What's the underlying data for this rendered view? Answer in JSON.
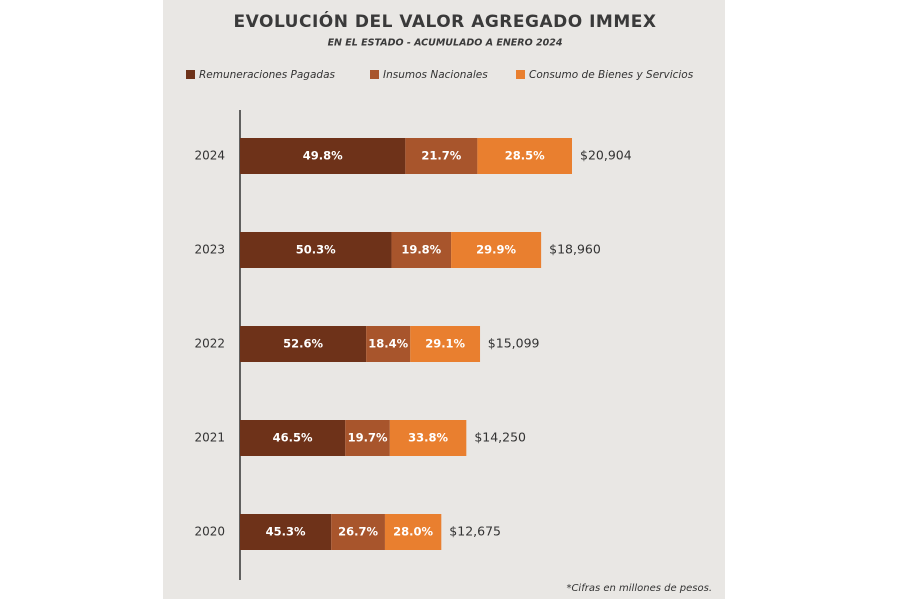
{
  "chart_data": {
    "type": "bar",
    "title": "EVOLUCIÓN DEL VALOR AGREGADO IMMEX",
    "subtitle": "EN EL ESTADO - ACUMULADO A ENERO 2024",
    "categories": [
      "2024",
      "2023",
      "2022",
      "2021",
      "2020"
    ],
    "series": [
      {
        "name": "Remuneraciones Pagadas",
        "color": "#6e3219",
        "values": [
          49.8,
          50.3,
          52.6,
          46.5,
          45.3
        ],
        "value_labels": [
          "49.8%",
          "50.3%",
          "52.6%",
          "46.5%",
          "45.3%"
        ]
      },
      {
        "name": "Insumos Nacionales",
        "color": "#a8552c",
        "values": [
          21.7,
          19.8,
          18.4,
          19.7,
          26.7
        ],
        "value_labels": [
          "21.7%",
          "19.8%",
          "18.4%",
          "19.7%",
          "26.7%"
        ]
      },
      {
        "name": "Consumo de Bienes y Servicios",
        "color": "#e97f2f",
        "values": [
          28.5,
          29.9,
          29.1,
          33.8,
          28.0
        ],
        "value_labels": [
          "28.5%",
          "29.9%",
          "29.1%",
          "33.8%",
          "28.0%"
        ]
      }
    ],
    "totals": {
      "values": [
        20904,
        18960,
        15099,
        14250,
        12675
      ],
      "value_labels": [
        "$20,904",
        "$18,960",
        "$15,099",
        "$14,250",
        "$12,675"
      ]
    },
    "note": "*Cifras en millones de pesos."
  }
}
